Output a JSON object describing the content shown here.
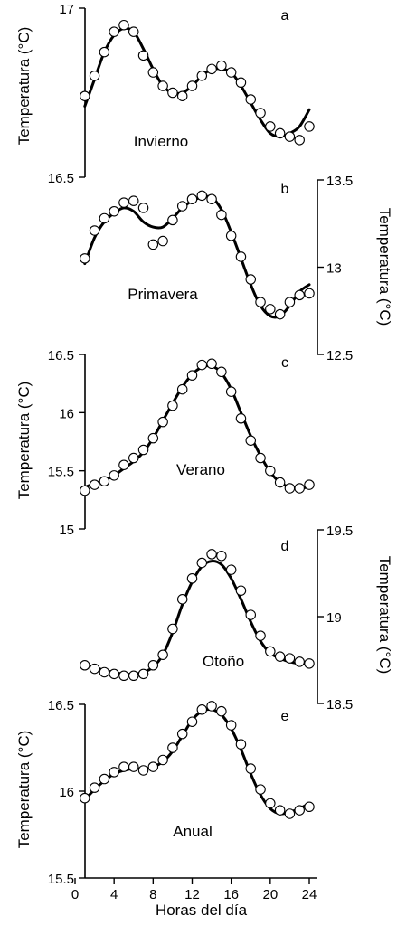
{
  "chart_data": [
    {
      "type": "line",
      "panel_label": "a",
      "season": "Invierno",
      "ylabel": "Temperatura  (°C)",
      "y_axis_side": "left",
      "ylim": [
        16.5,
        17.0
      ],
      "yticks": [
        "17",
        "16.5"
      ],
      "ytick_values": [
        17.0,
        16.5
      ],
      "x": [
        1,
        2,
        3,
        4,
        5,
        6,
        7,
        8,
        9,
        10,
        11,
        12,
        13,
        14,
        15,
        16,
        17,
        18,
        19,
        20,
        21,
        22,
        23,
        24
      ],
      "points": [
        16.74,
        16.8,
        16.87,
        16.93,
        16.95,
        16.93,
        16.86,
        16.81,
        16.77,
        16.75,
        16.74,
        16.77,
        16.8,
        16.82,
        16.83,
        16.81,
        16.78,
        16.73,
        16.69,
        16.65,
        16.63,
        16.62,
        16.61,
        16.65
      ],
      "fit": [
        16.71,
        16.79,
        16.87,
        16.92,
        16.94,
        16.93,
        16.88,
        16.82,
        16.77,
        16.75,
        16.75,
        16.77,
        16.8,
        16.82,
        16.82,
        16.81,
        16.77,
        16.72,
        16.67,
        16.63,
        16.62,
        16.63,
        16.65,
        16.7
      ]
    },
    {
      "type": "line",
      "panel_label": "b",
      "season": "Primavera",
      "ylabel": "Temperatura  (°C)",
      "y_axis_side": "right",
      "ylim": [
        12.5,
        13.5
      ],
      "yticks": [
        "13.5",
        "13",
        "12.5"
      ],
      "ytick_values": [
        13.5,
        13.0,
        12.5
      ],
      "x": [
        1,
        2,
        3,
        4,
        5,
        6,
        7,
        8,
        9,
        10,
        11,
        12,
        13,
        14,
        15,
        16,
        17,
        18,
        19,
        20,
        21,
        22,
        23,
        24
      ],
      "points": [
        13.05,
        13.21,
        13.28,
        13.32,
        13.37,
        13.38,
        13.34,
        13.13,
        13.15,
        13.27,
        13.35,
        13.39,
        13.41,
        13.39,
        13.3,
        13.18,
        13.06,
        12.93,
        12.8,
        12.76,
        12.73,
        12.8,
        12.84,
        12.85
      ],
      "fit": [
        13.02,
        13.17,
        13.26,
        13.31,
        13.34,
        13.32,
        13.26,
        13.23,
        13.23,
        13.28,
        13.34,
        13.38,
        13.4,
        13.4,
        13.33,
        13.2,
        13.05,
        12.9,
        12.78,
        12.72,
        12.72,
        12.78,
        12.86,
        12.9
      ]
    },
    {
      "type": "line",
      "panel_label": "c",
      "season": "Verano",
      "ylabel": "Temperatura  (°C)",
      "y_axis_side": "left",
      "ylim": [
        15.0,
        16.5
      ],
      "yticks": [
        "16.5",
        "16",
        "15.5",
        "15"
      ],
      "ytick_values": [
        16.5,
        16.0,
        15.5,
        15.0
      ],
      "x": [
        1,
        2,
        3,
        4,
        5,
        6,
        7,
        8,
        9,
        10,
        11,
        12,
        13,
        14,
        15,
        16,
        17,
        18,
        19,
        20,
        21,
        22,
        23,
        24
      ],
      "points": [
        15.33,
        15.38,
        15.41,
        15.46,
        15.55,
        15.61,
        15.68,
        15.78,
        15.92,
        16.06,
        16.2,
        16.32,
        16.41,
        16.42,
        16.35,
        16.18,
        15.95,
        15.76,
        15.61,
        15.5,
        15.4,
        15.35,
        15.35,
        15.38
      ],
      "fit": [
        15.36,
        15.39,
        15.42,
        15.46,
        15.52,
        15.58,
        15.66,
        15.78,
        15.93,
        16.08,
        16.22,
        16.33,
        16.39,
        16.4,
        16.34,
        16.2,
        16.0,
        15.8,
        15.63,
        15.49,
        15.4,
        15.36,
        15.35,
        15.36
      ]
    },
    {
      "type": "line",
      "panel_label": "d",
      "season": "Otoño",
      "ylabel": "Temperatura  (°C)",
      "y_axis_side": "right",
      "ylim": [
        18.5,
        19.5
      ],
      "yticks": [
        "19.5",
        "19",
        "18.5"
      ],
      "ytick_values": [
        19.5,
        19.0,
        18.5
      ],
      "x": [
        1,
        2,
        3,
        4,
        5,
        6,
        7,
        8,
        9,
        10,
        11,
        12,
        13,
        14,
        15,
        16,
        17,
        18,
        19,
        20,
        21,
        22,
        23,
        24
      ],
      "points": [
        18.72,
        18.7,
        18.68,
        18.67,
        18.66,
        18.66,
        18.67,
        18.72,
        18.78,
        18.93,
        19.1,
        19.22,
        19.31,
        19.36,
        19.35,
        19.27,
        19.15,
        19.01,
        18.89,
        18.8,
        18.77,
        18.76,
        18.74,
        18.73
      ],
      "fit": [
        18.72,
        18.71,
        18.69,
        18.68,
        18.67,
        18.67,
        18.68,
        18.71,
        18.78,
        18.91,
        19.07,
        19.2,
        19.29,
        19.32,
        19.3,
        19.22,
        19.1,
        18.97,
        18.86,
        18.79,
        18.76,
        18.74,
        18.73,
        18.73
      ]
    },
    {
      "type": "line",
      "panel_label": "e",
      "season": "Anual",
      "ylabel": "Temperatura  (°C)",
      "y_axis_side": "left",
      "ylim": [
        15.5,
        16.5
      ],
      "yticks": [
        "16.5",
        "16",
        "15.5"
      ],
      "ytick_values": [
        16.5,
        16.0,
        15.5
      ],
      "xlabel": "Horas del día",
      "xlim": [
        0,
        25
      ],
      "xticks": [
        "0",
        "4",
        "8",
        "12",
        "16",
        "20",
        "24"
      ],
      "xtick_values": [
        0,
        4,
        8,
        12,
        16,
        20,
        24
      ],
      "x": [
        1,
        2,
        3,
        4,
        5,
        6,
        7,
        8,
        9,
        10,
        11,
        12,
        13,
        14,
        15,
        16,
        17,
        18,
        19,
        20,
        21,
        22,
        23,
        24
      ],
      "points": [
        15.96,
        16.02,
        16.07,
        16.11,
        16.14,
        16.14,
        16.12,
        16.14,
        16.18,
        16.25,
        16.33,
        16.4,
        16.47,
        16.49,
        16.46,
        16.38,
        16.27,
        16.13,
        16.01,
        15.93,
        15.89,
        15.87,
        15.89,
        15.91
      ],
      "fit": [
        15.95,
        16.01,
        16.06,
        16.1,
        16.12,
        16.13,
        16.13,
        16.14,
        16.17,
        16.23,
        16.32,
        16.41,
        16.46,
        16.47,
        16.44,
        16.36,
        16.24,
        16.1,
        15.98,
        15.9,
        15.87,
        15.88,
        15.9,
        15.93
      ]
    }
  ]
}
